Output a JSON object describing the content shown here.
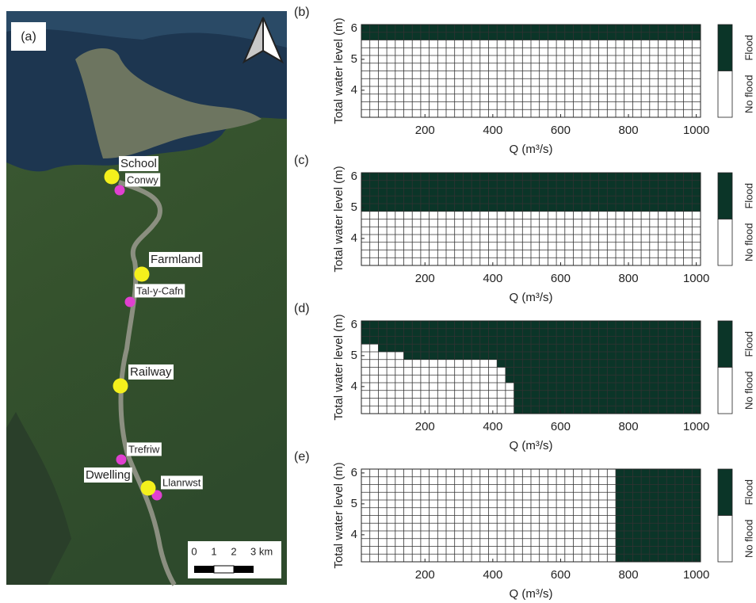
{
  "map": {
    "label": "(a)",
    "sites": [
      "School",
      "Farmland",
      "Railway",
      "Dwelling"
    ],
    "towns": [
      "Conwy",
      "Tal-y-Cafn",
      "Trefriw",
      "Llanrwst"
    ],
    "scale_labels": [
      "0",
      "1",
      "2",
      "3 km"
    ]
  },
  "chart_data": [
    {
      "type": "heatmap",
      "title": "(b)",
      "xlabel": "Q (m³/s)",
      "ylabel": "Total water level (m)",
      "x_bins": [
        12.5,
        37.5,
        62.5,
        87.5,
        112.5,
        137.5,
        162.5,
        187.5,
        212.5,
        237.5,
        262.5,
        287.5,
        312.5,
        337.5,
        362.5,
        387.5,
        412.5,
        437.5,
        462.5,
        487.5,
        512.5,
        537.5,
        562.5,
        587.5,
        612.5,
        637.5,
        662.5,
        687.5,
        712.5,
        737.5,
        762.5,
        787.5,
        812.5,
        837.5,
        862.5,
        887.5,
        912.5,
        937.5,
        962.5,
        987.5,
        1012.5
      ],
      "y_bins": [
        3.125,
        3.375,
        3.625,
        3.875,
        4.125,
        4.375,
        4.625,
        4.875,
        5.125,
        5.375,
        5.625,
        5.875,
        6.125
      ],
      "values": [
        5.625,
        5.625,
        5.625,
        5.625,
        5.625,
        5.625,
        5.625,
        5.625,
        5.625,
        5.625,
        5.625,
        5.625,
        5.625,
        5.625,
        5.625,
        5.625,
        5.625,
        5.625,
        5.625,
        5.625,
        5.625,
        5.625,
        5.625,
        5.625,
        5.625,
        5.625,
        5.625,
        5.625,
        5.625,
        5.625,
        5.625,
        5.625,
        5.625,
        5.625,
        5.625,
        5.625,
        5.625,
        5.625,
        5.625,
        5.625
      ],
      "xlim": [
        12.5,
        1012.5
      ],
      "ylim": [
        3.125,
        6.125
      ],
      "xticks": [
        200,
        400,
        600,
        800,
        1000
      ],
      "yticks": [
        4,
        5,
        6
      ],
      "legend": [
        {
          "name": "Flood",
          "color": "#0b3528"
        },
        {
          "name": "No flood",
          "color": "#ffffff"
        }
      ]
    },
    {
      "type": "heatmap",
      "title": "(c)",
      "xlabel": "Q (m³/s)",
      "ylabel": "Total water level (m)",
      "x_bins": [
        12.5,
        37.5,
        62.5,
        87.5,
        112.5,
        137.5,
        162.5,
        187.5,
        212.5,
        237.5,
        262.5,
        287.5,
        312.5,
        337.5,
        362.5,
        387.5,
        412.5,
        437.5,
        462.5,
        487.5,
        512.5,
        537.5,
        562.5,
        587.5,
        612.5,
        637.5,
        662.5,
        687.5,
        712.5,
        737.5,
        762.5,
        787.5,
        812.5,
        837.5,
        862.5,
        887.5,
        912.5,
        937.5,
        962.5,
        987.5,
        1012.5
      ],
      "y_bins": [
        3.125,
        3.375,
        3.625,
        3.875,
        4.125,
        4.375,
        4.625,
        4.875,
        5.125,
        5.375,
        5.625,
        5.875,
        6.125
      ],
      "values": [
        4.875,
        4.875,
        4.875,
        4.875,
        4.875,
        4.875,
        4.875,
        4.875,
        4.875,
        4.875,
        4.875,
        4.875,
        4.875,
        4.875,
        4.875,
        4.875,
        4.875,
        4.875,
        4.875,
        4.875,
        4.875,
        4.875,
        4.875,
        4.875,
        4.875,
        4.875,
        4.875,
        4.875,
        4.875,
        4.875,
        4.875,
        4.875,
        4.875,
        4.875,
        4.875,
        4.875,
        4.875,
        4.875,
        4.875,
        4.875
      ],
      "xlim": [
        12.5,
        1012.5
      ],
      "ylim": [
        3.125,
        6.125
      ],
      "xticks": [
        200,
        400,
        600,
        800,
        1000
      ],
      "yticks": [
        4,
        5,
        6
      ],
      "legend": [
        {
          "name": "Flood",
          "color": "#0b3528"
        },
        {
          "name": "No flood",
          "color": "#ffffff"
        }
      ]
    },
    {
      "type": "heatmap",
      "title": "(d)",
      "xlabel": "Q (m³/s)",
      "ylabel": "Total water level (m)",
      "x_bins": [
        12.5,
        37.5,
        62.5,
        87.5,
        112.5,
        137.5,
        162.5,
        187.5,
        212.5,
        237.5,
        262.5,
        287.5,
        312.5,
        337.5,
        362.5,
        387.5,
        412.5,
        437.5,
        462.5,
        487.5,
        512.5,
        537.5,
        562.5,
        587.5,
        612.5,
        637.5,
        662.5,
        687.5,
        712.5,
        737.5,
        762.5,
        787.5,
        812.5,
        837.5,
        862.5,
        887.5,
        912.5,
        937.5,
        962.5,
        987.5,
        1012.5
      ],
      "y_bins": [
        3.125,
        3.375,
        3.625,
        3.875,
        4.125,
        4.375,
        4.625,
        4.875,
        5.125,
        5.375,
        5.625,
        5.875,
        6.125
      ],
      "values": [
        5.375,
        5.375,
        5.125,
        5.125,
        5.125,
        4.875,
        4.875,
        4.875,
        4.875,
        4.875,
        4.875,
        4.875,
        4.875,
        4.875,
        4.875,
        4.875,
        4.625,
        4.125,
        3.125,
        3.125,
        3.125,
        3.125,
        3.125,
        3.125,
        3.125,
        3.125,
        3.125,
        3.125,
        3.125,
        3.125,
        3.125,
        3.125,
        3.125,
        3.125,
        3.125,
        3.125,
        3.125,
        3.125,
        3.125,
        3.125
      ],
      "xlim": [
        12.5,
        1012.5
      ],
      "ylim": [
        3.125,
        6.125
      ],
      "xticks": [
        200,
        400,
        600,
        800,
        1000
      ],
      "yticks": [
        4,
        5,
        6
      ],
      "legend": [
        {
          "name": "Flood",
          "color": "#0b3528"
        },
        {
          "name": "No flood",
          "color": "#ffffff"
        }
      ]
    },
    {
      "type": "heatmap",
      "title": "(e)",
      "xlabel": "Q (m³/s)",
      "ylabel": "Total water level (m)",
      "x_bins": [
        12.5,
        37.5,
        62.5,
        87.5,
        112.5,
        137.5,
        162.5,
        187.5,
        212.5,
        237.5,
        262.5,
        287.5,
        312.5,
        337.5,
        362.5,
        387.5,
        412.5,
        437.5,
        462.5,
        487.5,
        512.5,
        537.5,
        562.5,
        587.5,
        612.5,
        637.5,
        662.5,
        687.5,
        712.5,
        737.5,
        762.5,
        787.5,
        812.5,
        837.5,
        862.5,
        887.5,
        912.5,
        937.5,
        962.5,
        987.5,
        1012.5
      ],
      "y_bins": [
        3.125,
        3.375,
        3.625,
        3.875,
        4.125,
        4.375,
        4.625,
        4.875,
        5.125,
        5.375,
        5.625,
        5.875,
        6.125
      ],
      "values": [
        null,
        null,
        null,
        null,
        null,
        null,
        null,
        null,
        null,
        null,
        null,
        null,
        null,
        null,
        null,
        null,
        null,
        null,
        null,
        null,
        null,
        null,
        null,
        null,
        null,
        null,
        null,
        null,
        null,
        null,
        3.125,
        3.125,
        3.125,
        3.125,
        3.125,
        3.125,
        3.125,
        3.125,
        3.125,
        3.125
      ],
      "xlim": [
        12.5,
        1012.5
      ],
      "ylim": [
        3.125,
        6.125
      ],
      "xticks": [
        200,
        400,
        600,
        800,
        1000
      ],
      "yticks": [
        4,
        5,
        6
      ],
      "legend": [
        {
          "name": "Flood",
          "color": "#0b3528"
        },
        {
          "name": "No flood",
          "color": "#ffffff"
        }
      ]
    }
  ]
}
